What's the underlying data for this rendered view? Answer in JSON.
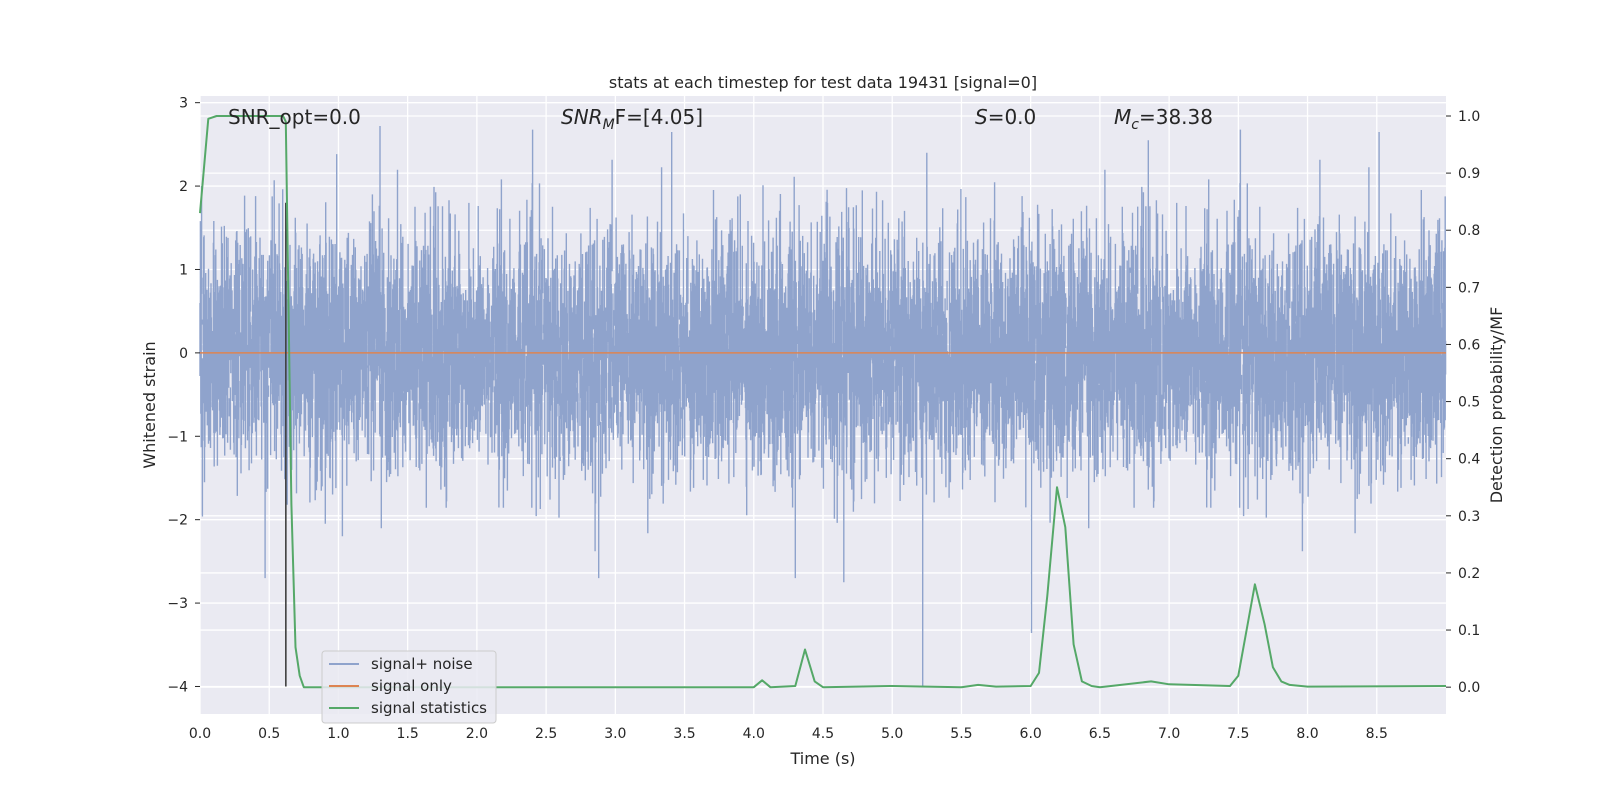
{
  "chart_data": {
    "type": "line",
    "title": "stats at each timestep for test data 19431 [signal=0]",
    "xlabel": "Time (s)",
    "ylabel_left": "Whitened strain",
    "ylabel_right": "Detection probability/MF",
    "xlim": [
      0.0,
      9.0
    ],
    "ylim_left": [
      -4.33,
      3.08
    ],
    "ylim_right": [
      -0.047,
      1.035
    ],
    "x_ticks": [
      0.0,
      0.5,
      1.0,
      1.5,
      2.0,
      2.5,
      3.0,
      3.5,
      4.0,
      4.5,
      5.0,
      5.5,
      6.0,
      6.5,
      7.0,
      7.5,
      8.0,
      8.5
    ],
    "x_tick_labels": [
      "0.0",
      "0.5",
      "1.0",
      "1.5",
      "2.0",
      "2.5",
      "3.0",
      "3.5",
      "4.0",
      "4.5",
      "5.0",
      "5.5",
      "6.0",
      "6.5",
      "7.0",
      "7.5",
      "8.0",
      "8.5"
    ],
    "y_left_ticks": [
      -4,
      -3,
      -2,
      -1,
      0,
      1,
      2,
      3
    ],
    "y_left_tick_labels": [
      "−4",
      "−3",
      "−2",
      "−1",
      "0",
      "1",
      "2",
      "3"
    ],
    "y_right_ticks": [
      0.0,
      0.1,
      0.2,
      0.3,
      0.4,
      0.5,
      0.6,
      0.7,
      0.8,
      0.9,
      1.0
    ],
    "y_right_tick_labels": [
      "0.0",
      "0.1",
      "0.2",
      "0.3",
      "0.4",
      "0.5",
      "0.6",
      "0.7",
      "0.8",
      "0.9",
      "1.0"
    ],
    "grid": true,
    "legend_position": "lower-left",
    "annotations": {
      "snr_opt": "SNR_opt=0.0",
      "snr_mf_base": "SNR",
      "snr_mf_sub": "M",
      "snr_mf_rest": "F=[4.05]",
      "s_sym": "S",
      "s_rest": "=0.0",
      "mc_base": "M",
      "mc_sub": "c",
      "mc_rest": "=38.38"
    },
    "series": [
      {
        "name": "signal+ noise",
        "color": "#8fa3cc",
        "kind": "noise",
        "sample_rate_hz": 1024,
        "approx_std": 0.7,
        "y_range": [
          -4.0,
          2.75
        ],
        "notable_extremes": [
          {
            "x": 0.47,
            "y": -2.7
          },
          {
            "x": 1.3,
            "y": 2.72
          },
          {
            "x": 2.88,
            "y": -2.7
          },
          {
            "x": 4.3,
            "y": -2.7
          },
          {
            "x": 4.65,
            "y": -2.75
          },
          {
            "x": 5.22,
            "y": -4.0
          },
          {
            "x": 5.25,
            "y": 2.4
          },
          {
            "x": 6.85,
            "y": 2.55
          }
        ]
      },
      {
        "name": "signal only",
        "color": "#dd8452",
        "x": [
          0.0,
          9.0
        ],
        "y": [
          0.0,
          0.0
        ]
      },
      {
        "name": "signal statistics",
        "color": "#55a868",
        "axis": "right",
        "x": [
          0.0,
          0.06,
          0.12,
          0.25,
          0.5,
          0.6,
          0.62,
          0.66,
          0.69,
          0.72,
          0.75,
          4.0,
          4.06,
          4.12,
          4.3,
          4.37,
          4.44,
          4.5,
          5.0,
          5.5,
          5.62,
          5.75,
          6.0,
          6.06,
          6.12,
          6.19,
          6.25,
          6.31,
          6.37,
          6.44,
          6.5,
          6.87,
          7.0,
          7.44,
          7.5,
          7.56,
          7.62,
          7.69,
          7.75,
          7.81,
          7.87,
          8.0,
          9.0
        ],
        "y": [
          0.83,
          0.995,
          1.0,
          1.0,
          1.0,
          1.0,
          0.99,
          0.32,
          0.07,
          0.02,
          0.0,
          0.0,
          0.012,
          0.0,
          0.002,
          0.066,
          0.01,
          0.0,
          0.002,
          0.0,
          0.004,
          0.001,
          0.002,
          0.025,
          0.16,
          0.35,
          0.28,
          0.075,
          0.01,
          0.002,
          0.0,
          0.01,
          0.005,
          0.002,
          0.02,
          0.1,
          0.18,
          0.11,
          0.035,
          0.01,
          0.004,
          0.001,
          0.002
        ]
      },
      {
        "name": "",
        "color": "#404040",
        "kind": "vline",
        "x": [
          0.62,
          0.62
        ],
        "y": [
          -4.0,
          1.8
        ]
      }
    ]
  }
}
